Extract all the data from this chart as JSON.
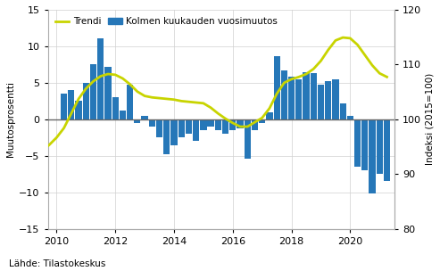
{
  "ylabel_left": "Muutosprosentti",
  "ylabel_right": "Indeksi (2015=100)",
  "source": "Lähde: Tilastokeskus",
  "ylim_left": [
    -15,
    15
  ],
  "ylim_right": [
    80,
    120
  ],
  "yticks_left": [
    -15,
    -10,
    -5,
    0,
    5,
    10,
    15
  ],
  "yticks_right": [
    80,
    90,
    100,
    110,
    120
  ],
  "legend_trendi": "Trendi",
  "legend_bars": "Kolmen kuukauden vuosimuutos",
  "bar_color": "#2677b8",
  "trend_color": "#c8d400",
  "zero_line_color": "#666666",
  "bar_x": [
    2010.25,
    2010.5,
    2010.75,
    2011.0,
    2011.25,
    2011.5,
    2011.75,
    2012.0,
    2012.25,
    2012.5,
    2012.75,
    2013.0,
    2013.25,
    2013.5,
    2013.75,
    2014.0,
    2014.25,
    2014.5,
    2014.75,
    2015.0,
    2015.25,
    2015.5,
    2015.75,
    2016.0,
    2016.25,
    2016.5,
    2016.75,
    2017.0,
    2017.25,
    2017.5,
    2017.75,
    2018.0,
    2018.25,
    2018.5,
    2018.75,
    2019.0,
    2019.25,
    2019.5,
    2019.75,
    2020.0,
    2020.25,
    2020.5,
    2020.75,
    2021.0,
    2021.25
  ],
  "bar_values": [
    3.5,
    4.0,
    2.5,
    5.0,
    7.5,
    11.1,
    7.2,
    3.0,
    1.2,
    4.7,
    -0.5,
    0.5,
    -1.0,
    -2.5,
    -4.8,
    -3.5,
    -2.5,
    -2.0,
    -3.0,
    -1.5,
    -1.0,
    -1.5,
    -2.0,
    -1.5,
    -1.2,
    -5.4,
    -1.5,
    -0.5,
    1.0,
    8.6,
    6.7,
    5.8,
    5.5,
    6.5,
    6.3,
    4.8,
    5.2,
    5.5,
    2.2,
    0.5,
    -6.5,
    -7.0,
    -10.2,
    -7.5,
    -8.5
  ],
  "trend_x": [
    2009.6,
    2009.75,
    2010.0,
    2010.25,
    2010.5,
    2010.75,
    2011.0,
    2011.25,
    2011.5,
    2011.75,
    2012.0,
    2012.25,
    2012.5,
    2012.75,
    2013.0,
    2013.25,
    2013.5,
    2013.75,
    2014.0,
    2014.25,
    2014.5,
    2014.75,
    2015.0,
    2015.25,
    2015.5,
    2015.75,
    2016.0,
    2016.25,
    2016.5,
    2016.75,
    2017.0,
    2017.25,
    2017.5,
    2017.75,
    2018.0,
    2018.25,
    2018.5,
    2018.75,
    2019.0,
    2019.25,
    2019.5,
    2019.75,
    2020.0,
    2020.25,
    2020.5,
    2020.75,
    2021.0,
    2021.25
  ],
  "trend_y": [
    -4.0,
    -3.5,
    -2.5,
    -1.2,
    0.8,
    2.8,
    4.2,
    5.2,
    5.9,
    6.2,
    6.1,
    5.6,
    4.8,
    3.8,
    3.2,
    3.0,
    2.9,
    2.8,
    2.7,
    2.5,
    2.4,
    2.3,
    2.2,
    1.6,
    0.8,
    0.1,
    -0.5,
    -1.0,
    -1.0,
    -0.4,
    0.2,
    1.5,
    3.5,
    5.0,
    5.5,
    5.8,
    6.2,
    6.9,
    8.0,
    9.5,
    10.8,
    11.2,
    11.1,
    10.2,
    8.8,
    7.4,
    6.3,
    5.8
  ],
  "xticks": [
    2010,
    2012,
    2014,
    2016,
    2018,
    2020
  ],
  "xlim": [
    2009.7,
    2021.5
  ],
  "background_color": "#ffffff",
  "grid_color": "#d0d0d0",
  "spine_color": "#aaaaaa",
  "figsize": [
    4.93,
    3.04
  ],
  "dpi": 100
}
